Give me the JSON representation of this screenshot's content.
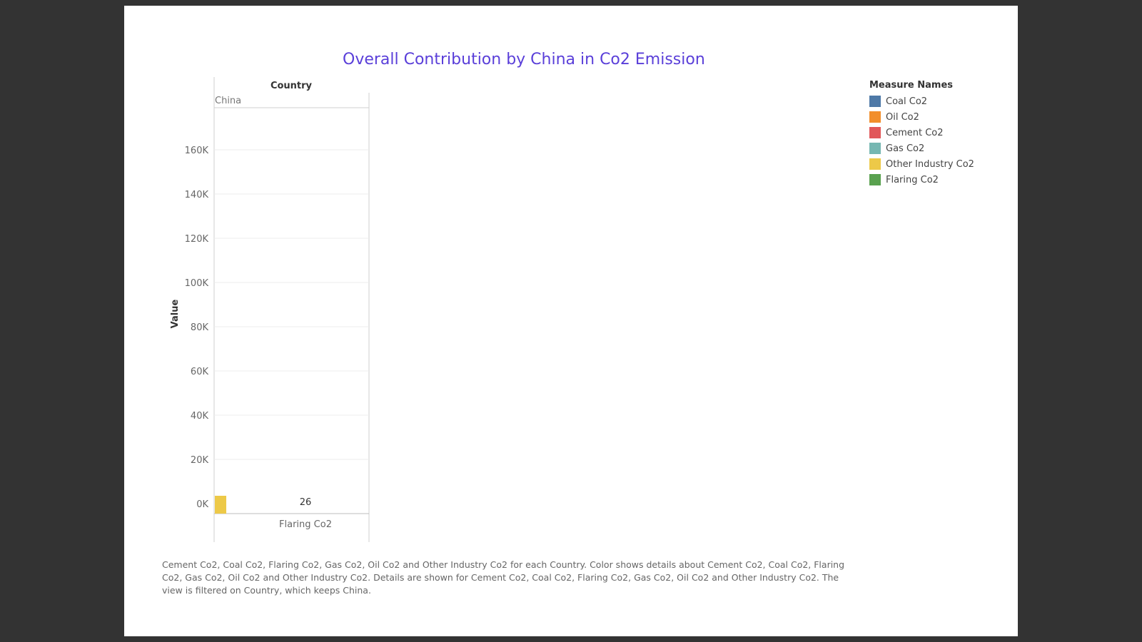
{
  "chart_data": {
    "type": "bar",
    "title": "Overall Contribution by China in Co2 Emission",
    "column_header": "Country",
    "column_value": "China",
    "xlabel": "",
    "ylabel": "Value",
    "categories": [
      "Flaring Co2"
    ],
    "series": [
      {
        "name": "Other Industry Co2",
        "values": [
          26
        ]
      }
    ],
    "data_labels": [
      "26"
    ],
    "ylim": [
      -15000,
      180000
    ],
    "yticks": [
      0,
      20000,
      40000,
      60000,
      80000,
      100000,
      120000,
      140000,
      160000
    ],
    "ytick_labels": [
      "0K",
      "20K",
      "40K",
      "60K",
      "80K",
      "100K",
      "120K",
      "140K",
      "160K"
    ],
    "grid": true,
    "legend_placement": "right"
  },
  "legend": {
    "title": "Measure Names",
    "items": [
      {
        "label": "Coal Co2",
        "color": "#4e79a7"
      },
      {
        "label": "Oil Co2",
        "color": "#f28e2b"
      },
      {
        "label": "Cement Co2",
        "color": "#e15759"
      },
      {
        "label": "Gas Co2",
        "color": "#76b7b2"
      },
      {
        "label": "Other Industry Co2",
        "color": "#edc948"
      },
      {
        "label": "Flaring Co2",
        "color": "#59a14f"
      }
    ]
  },
  "caption": "Cement Co2, Coal Co2, Flaring Co2, Gas Co2, Oil Co2 and Other Industry Co2 for each Country.  Color shows details about Cement Co2, Coal Co2, Flaring Co2, Gas Co2, Oil Co2 and Other Industry Co2.  Details are shown for Cement Co2, Coal Co2, Flaring Co2, Gas Co2, Oil Co2 and Other Industry Co2. The view is filtered on Country, which keeps China."
}
